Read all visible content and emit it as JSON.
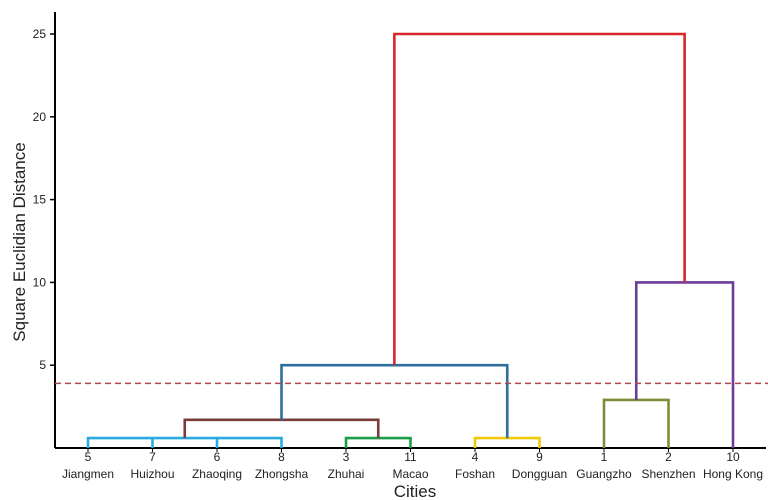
{
  "chart_data": {
    "type": "dendrogram",
    "xlabel": "Cities",
    "ylabel": "Square Euclidian Distance",
    "ylim": [
      0,
      26
    ],
    "yticks": [
      5,
      10,
      15,
      20,
      25
    ],
    "grid": false,
    "leaves": [
      {
        "id": "5",
        "name": "Jiangmen"
      },
      {
        "id": "7",
        "name": "Huizhou"
      },
      {
        "id": "6",
        "name": "Zhaoqing"
      },
      {
        "id": "8",
        "name": "Zhongsha"
      },
      {
        "id": "3",
        "name": "Zhuhai"
      },
      {
        "id": "11",
        "name": "Macao"
      },
      {
        "id": "4",
        "name": "Foshan"
      },
      {
        "id": "9",
        "name": "Dongguan"
      },
      {
        "id": "1",
        "name": "Guangzho"
      },
      {
        "id": "2",
        "name": "Shenzhen"
      },
      {
        "id": "10",
        "name": "Hong Kong"
      }
    ],
    "merges": [
      {
        "left": [
          "5",
          "7",
          "6"
        ],
        "right": "8",
        "height": 0.6,
        "color": "#29abe2"
      },
      {
        "left": "3",
        "right": "11",
        "height": 0.6,
        "color": "#1a9e4a"
      },
      {
        "left": "4",
        "right": "9",
        "height": 0.6,
        "color": "#f2c80f"
      },
      {
        "left": "1",
        "right": "2",
        "height": 2.9,
        "color": "#7b8f3a"
      },
      {
        "left": "cluster_5_7_6_8",
        "right": "cluster_3_11",
        "height": 1.7,
        "color": "#7a3b3b"
      },
      {
        "left": "cluster_5_7_6_8_3_11",
        "right": "cluster_4_9",
        "height": 5.0,
        "color": "#2e6f9e"
      },
      {
        "left": "cluster_1_2",
        "right": "10",
        "height": 10.0,
        "color": "#6a3d9a"
      },
      {
        "left": "cluster_A",
        "right": "cluster_B",
        "height": 25.0,
        "color": "#d9262a"
      }
    ],
    "cutoff": {
      "value": 3.9,
      "color": "#b5484b",
      "style": "dashed"
    }
  }
}
